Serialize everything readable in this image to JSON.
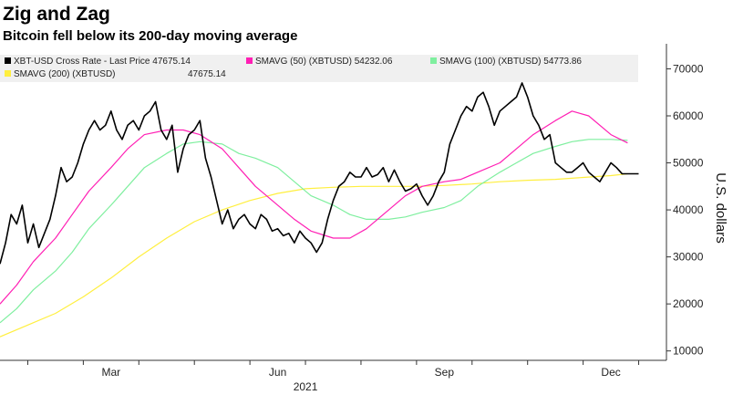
{
  "header": {
    "title": "Zig and Zag",
    "subtitle": "Bitcoin fell below its 200-day moving average"
  },
  "chart_data": {
    "type": "line",
    "ylabel": "U.S. dollars",
    "ylim": [
      8000,
      73000
    ],
    "yticks": [
      10000,
      20000,
      30000,
      40000,
      50000,
      60000,
      70000
    ],
    "x_range_months": [
      1.0,
      13.0
    ],
    "xticks": [
      {
        "label": "Mar",
        "x": 3.0
      },
      {
        "label": "Jun",
        "x": 6.0
      },
      {
        "label": "Sep",
        "x": 9.0
      },
      {
        "label": "Dec",
        "x": 12.0
      }
    ],
    "xyear": {
      "label": "2021",
      "x": 6.5
    },
    "grid": false,
    "legend": [
      {
        "name": "XBT-USD Cross Rate - Last Price",
        "last": "47675.14",
        "color": "#000000"
      },
      {
        "name": "SMAVG (50) (XBTUSD)",
        "last": "54232.06",
        "color": "#ff1fb4"
      },
      {
        "name": "SMAVG (100) (XBTUSD)",
        "last": "54773.86",
        "color": "#7fef9f"
      },
      {
        "name": "SMAVG (200) (XBTUSD)",
        "last": "47675.14",
        "color": "#ffef3f"
      }
    ],
    "series": [
      {
        "name": "XBT-USD Cross Rate - Last Price",
        "color": "#000000",
        "x": [
          1.0,
          1.1,
          1.2,
          1.3,
          1.4,
          1.5,
          1.6,
          1.7,
          1.8,
          1.9,
          2.0,
          2.1,
          2.2,
          2.3,
          2.4,
          2.5,
          2.6,
          2.7,
          2.8,
          2.9,
          3.0,
          3.1,
          3.2,
          3.3,
          3.4,
          3.5,
          3.6,
          3.7,
          3.8,
          3.9,
          4.0,
          4.1,
          4.2,
          4.3,
          4.4,
          4.5,
          4.6,
          4.7,
          4.8,
          4.9,
          5.0,
          5.1,
          5.2,
          5.3,
          5.4,
          5.5,
          5.6,
          5.7,
          5.8,
          5.9,
          6.0,
          6.1,
          6.2,
          6.3,
          6.4,
          6.5,
          6.6,
          6.7,
          6.8,
          6.9,
          7.0,
          7.1,
          7.2,
          7.3,
          7.4,
          7.5,
          7.6,
          7.7,
          7.8,
          7.9,
          8.0,
          8.1,
          8.2,
          8.3,
          8.4,
          8.5,
          8.6,
          8.7,
          8.8,
          8.9,
          9.0,
          9.1,
          9.2,
          9.3,
          9.4,
          9.5,
          9.6,
          9.7,
          9.8,
          9.9,
          10.0,
          10.1,
          10.2,
          10.3,
          10.4,
          10.5,
          10.6,
          10.7,
          10.8,
          10.9,
          11.0,
          11.1,
          11.2,
          11.3,
          11.4,
          11.5,
          11.6,
          11.7,
          11.8,
          11.9,
          12.0,
          12.1,
          12.2,
          12.3,
          12.4,
          12.5
        ],
        "y": [
          28500,
          33000,
          39000,
          37000,
          41000,
          33000,
          37000,
          32000,
          35000,
          38000,
          43000,
          49000,
          46000,
          47000,
          50000,
          54000,
          57000,
          59000,
          57000,
          58000,
          61000,
          57000,
          55000,
          58000,
          59000,
          57000,
          60000,
          61000,
          63000,
          57000,
          55000,
          58000,
          48000,
          53000,
          56000,
          57000,
          59000,
          51000,
          47000,
          42000,
          37000,
          40000,
          36000,
          38000,
          39000,
          37000,
          36000,
          39000,
          38000,
          35500,
          36000,
          34500,
          35000,
          33000,
          35500,
          34000,
          33000,
          31000,
          33000,
          38000,
          42000,
          45000,
          46000,
          48000,
          47000,
          47000,
          49000,
          47000,
          47500,
          49000,
          46000,
          48500,
          46000,
          44000,
          44500,
          45500,
          43000,
          41000,
          43000,
          46000,
          48000,
          54000,
          57000,
          60000,
          62000,
          61000,
          64000,
          65000,
          62000,
          58000,
          61000,
          62000,
          63000,
          64000,
          67000,
          64000,
          60000,
          58000,
          55000,
          56000,
          50000,
          49000,
          48000,
          48000,
          49000,
          50000,
          48000,
          47000,
          46000,
          48000,
          50000,
          49000,
          47700,
          47675,
          47675,
          47675
        ],
        "x_end": 12.3
      },
      {
        "name": "SMAVG (50) (XBTUSD)",
        "color": "#ff1fb4",
        "x": [
          1.0,
          1.3,
          1.6,
          2.0,
          2.3,
          2.6,
          3.0,
          3.3,
          3.6,
          4.0,
          4.3,
          4.6,
          5.0,
          5.3,
          5.6,
          6.0,
          6.3,
          6.6,
          7.0,
          7.3,
          7.6,
          8.0,
          8.3,
          8.6,
          9.0,
          9.3,
          9.6,
          10.0,
          10.3,
          10.6,
          11.0,
          11.3,
          11.6,
          12.0,
          12.3
        ],
        "y": [
          20000,
          24000,
          29000,
          34000,
          39000,
          44000,
          49000,
          53000,
          56000,
          57000,
          57000,
          56000,
          53000,
          49000,
          45000,
          41000,
          38000,
          35500,
          34000,
          34000,
          36000,
          40000,
          43000,
          45000,
          46000,
          46500,
          48000,
          50000,
          53000,
          56000,
          59000,
          61000,
          60000,
          56000,
          54232
        ]
      },
      {
        "name": "SMAVG (100) (XBTUSD)",
        "color": "#7fef9f",
        "x": [
          1.0,
          1.3,
          1.6,
          2.0,
          2.3,
          2.6,
          3.0,
          3.3,
          3.6,
          4.0,
          4.3,
          4.6,
          5.0,
          5.3,
          5.6,
          6.0,
          6.3,
          6.6,
          7.0,
          7.3,
          7.6,
          8.0,
          8.3,
          8.6,
          9.0,
          9.3,
          9.6,
          10.0,
          10.3,
          10.6,
          11.0,
          11.3,
          11.6,
          12.0,
          12.3
        ],
        "y": [
          16000,
          19000,
          23000,
          27000,
          31000,
          36000,
          41000,
          45000,
          49000,
          52000,
          54000,
          54500,
          54000,
          52000,
          51000,
          49000,
          46000,
          43000,
          41000,
          39000,
          38000,
          38000,
          38500,
          39500,
          40500,
          42000,
          45000,
          48000,
          50000,
          52000,
          53500,
          54500,
          55000,
          55000,
          54774
        ]
      },
      {
        "name": "SMAVG (200) (XBTUSD)",
        "color": "#ffef3f",
        "x": [
          1.0,
          1.5,
          2.0,
          2.5,
          3.0,
          3.5,
          4.0,
          4.5,
          5.0,
          5.5,
          6.0,
          6.5,
          7.0,
          7.5,
          8.0,
          8.5,
          9.0,
          9.5,
          10.0,
          10.5,
          11.0,
          11.5,
          12.0,
          12.3
        ],
        "y": [
          13000,
          15500,
          18000,
          21500,
          25500,
          30000,
          34000,
          37500,
          40000,
          42000,
          43500,
          44500,
          44800,
          45000,
          45000,
          45000,
          45200,
          45500,
          46000,
          46300,
          46500,
          46900,
          47300,
          47675
        ]
      }
    ]
  }
}
